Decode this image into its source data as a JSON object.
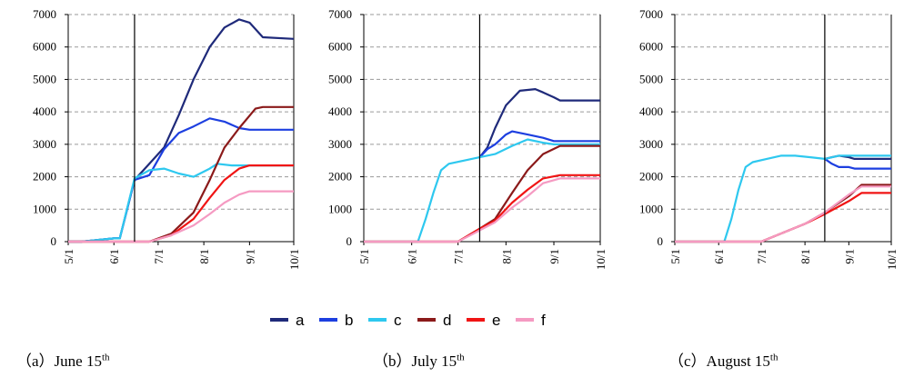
{
  "chart_data": [
    {
      "type": "line",
      "caption": {
        "prefix": "（a）June 15",
        "suffix": "th"
      },
      "cutoff_date": "6/15",
      "ylim": [
        0,
        7000
      ],
      "yticks": [
        "0",
        "1000",
        "2000",
        "3000",
        "4000",
        "5000",
        "6000",
        "7000"
      ],
      "xticks": [
        "5/1",
        "6/1",
        "7/1",
        "8/1",
        "9/1",
        "10/1"
      ],
      "grid": true,
      "series": [
        {
          "name": "a",
          "points": [
            [
              "5/1",
              0
            ],
            [
              "5/10",
              0
            ],
            [
              "6/1",
              100
            ],
            [
              "6/5",
              100
            ],
            [
              "6/15",
              1900
            ],
            [
              "6/25",
              2400
            ],
            [
              "7/5",
              2900
            ],
            [
              "7/15",
              3900
            ],
            [
              "7/25",
              5000
            ],
            [
              "8/5",
              6000
            ],
            [
              "8/15",
              6600
            ],
            [
              "8/25",
              6850
            ],
            [
              "9/1",
              6750
            ],
            [
              "9/10",
              6300
            ],
            [
              "10/1",
              6250
            ]
          ]
        },
        {
          "name": "b",
          "points": [
            [
              "5/1",
              0
            ],
            [
              "5/10",
              0
            ],
            [
              "6/1",
              100
            ],
            [
              "6/5",
              100
            ],
            [
              "6/15",
              1900
            ],
            [
              "6/25",
              2050
            ],
            [
              "7/5",
              2850
            ],
            [
              "7/15",
              3350
            ],
            [
              "7/25",
              3550
            ],
            [
              "8/5",
              3800
            ],
            [
              "8/15",
              3700
            ],
            [
              "8/25",
              3500
            ],
            [
              "9/1",
              3450
            ],
            [
              "10/1",
              3450
            ]
          ]
        },
        {
          "name": "c",
          "points": [
            [
              "5/1",
              0
            ],
            [
              "5/10",
              0
            ],
            [
              "6/1",
              100
            ],
            [
              "6/5",
              100
            ],
            [
              "6/15",
              1950
            ],
            [
              "6/25",
              2200
            ],
            [
              "7/5",
              2250
            ],
            [
              "7/15",
              2100
            ],
            [
              "7/25",
              2000
            ],
            [
              "8/5",
              2250
            ],
            [
              "8/10",
              2400
            ],
            [
              "8/20",
              2350
            ],
            [
              "10/1",
              2350
            ]
          ]
        },
        {
          "name": "d",
          "points": [
            [
              "5/1",
              0
            ],
            [
              "6/15",
              0
            ],
            [
              "6/25",
              0
            ],
            [
              "7/10",
              250
            ],
            [
              "7/25",
              900
            ],
            [
              "8/5",
              1900
            ],
            [
              "8/15",
              2900
            ],
            [
              "8/25",
              3500
            ],
            [
              "9/5",
              4100
            ],
            [
              "9/10",
              4150
            ],
            [
              "10/1",
              4150
            ]
          ]
        },
        {
          "name": "e",
          "points": [
            [
              "5/1",
              0
            ],
            [
              "6/15",
              0
            ],
            [
              "6/25",
              0
            ],
            [
              "7/10",
              200
            ],
            [
              "7/25",
              700
            ],
            [
              "8/5",
              1350
            ],
            [
              "8/15",
              1900
            ],
            [
              "8/25",
              2250
            ],
            [
              "9/1",
              2350
            ],
            [
              "10/1",
              2350
            ]
          ]
        },
        {
          "name": "f",
          "points": [
            [
              "5/1",
              0
            ],
            [
              "6/15",
              0
            ],
            [
              "6/25",
              0
            ],
            [
              "7/10",
              200
            ],
            [
              "7/25",
              500
            ],
            [
              "8/5",
              850
            ],
            [
              "8/15",
              1200
            ],
            [
              "8/25",
              1450
            ],
            [
              "9/1",
              1550
            ],
            [
              "10/1",
              1550
            ]
          ]
        }
      ]
    },
    {
      "type": "line",
      "caption": {
        "prefix": "（b）July 15",
        "suffix": "th"
      },
      "cutoff_date": "7/15",
      "ylim": [
        0,
        7000
      ],
      "yticks": [
        "0",
        "1000",
        "2000",
        "3000",
        "4000",
        "5000",
        "6000",
        "7000"
      ],
      "xticks": [
        "5/1",
        "6/1",
        "7/1",
        "8/1",
        "9/1",
        "10/1"
      ],
      "grid": true,
      "series": [
        {
          "name": "a",
          "points": [
            [
              "7/15",
              2600
            ],
            [
              "7/20",
              2900
            ],
            [
              "7/25",
              3500
            ],
            [
              "8/1",
              4200
            ],
            [
              "8/10",
              4650
            ],
            [
              "8/20",
              4700
            ],
            [
              "8/25",
              4600
            ],
            [
              "9/1",
              4450
            ],
            [
              "9/5",
              4350
            ],
            [
              "10/1",
              4350
            ]
          ]
        },
        {
          "name": "b",
          "points": [
            [
              "7/15",
              2600
            ],
            [
              "7/20",
              2850
            ],
            [
              "7/25",
              3000
            ],
            [
              "8/1",
              3300
            ],
            [
              "8/5",
              3400
            ],
            [
              "8/15",
              3300
            ],
            [
              "8/25",
              3200
            ],
            [
              "9/1",
              3100
            ],
            [
              "10/1",
              3100
            ]
          ]
        },
        {
          "name": "c",
          "points": [
            [
              "5/1",
              0
            ],
            [
              "5/20",
              0
            ],
            [
              "6/1",
              0
            ],
            [
              "6/5",
              0
            ],
            [
              "6/10",
              700
            ],
            [
              "6/15",
              1500
            ],
            [
              "6/20",
              2200
            ],
            [
              "6/25",
              2400
            ],
            [
              "7/5",
              2500
            ],
            [
              "7/15",
              2600
            ],
            [
              "7/25",
              2700
            ],
            [
              "8/5",
              2950
            ],
            [
              "8/15",
              3150
            ],
            [
              "8/25",
              3050
            ],
            [
              "9/1",
              3000
            ],
            [
              "10/1",
              3000
            ]
          ]
        },
        {
          "name": "d",
          "points": [
            [
              "5/1",
              0
            ],
            [
              "7/1",
              0
            ],
            [
              "7/15",
              400
            ],
            [
              "7/25",
              700
            ],
            [
              "8/5",
              1500
            ],
            [
              "8/15",
              2200
            ],
            [
              "8/25",
              2700
            ],
            [
              "9/5",
              2950
            ],
            [
              "10/1",
              2950
            ]
          ]
        },
        {
          "name": "e",
          "points": [
            [
              "5/1",
              0
            ],
            [
              "7/1",
              0
            ],
            [
              "7/15",
              400
            ],
            [
              "7/25",
              650
            ],
            [
              "8/5",
              1200
            ],
            [
              "8/15",
              1600
            ],
            [
              "8/25",
              1950
            ],
            [
              "9/5",
              2050
            ],
            [
              "10/1",
              2050
            ]
          ]
        },
        {
          "name": "f",
          "points": [
            [
              "5/1",
              0
            ],
            [
              "7/1",
              0
            ],
            [
              "7/15",
              350
            ],
            [
              "7/25",
              600
            ],
            [
              "8/5",
              1050
            ],
            [
              "8/15",
              1400
            ],
            [
              "8/25",
              1800
            ],
            [
              "9/5",
              1950
            ],
            [
              "10/1",
              1950
            ]
          ]
        }
      ]
    },
    {
      "type": "line",
      "caption": {
        "prefix": "（c）August 15",
        "suffix": "th"
      },
      "cutoff_date": "8/15",
      "ylim": [
        0,
        7000
      ],
      "yticks": [
        "0",
        "1000",
        "2000",
        "3000",
        "4000",
        "5000",
        "6000",
        "7000"
      ],
      "xticks": [
        "5/1",
        "6/1",
        "7/1",
        "8/1",
        "9/1",
        "10/1"
      ],
      "grid": true,
      "series": [
        {
          "name": "a",
          "points": [
            [
              "8/15",
              2550
            ],
            [
              "8/20",
              2600
            ],
            [
              "8/25",
              2650
            ],
            [
              "9/1",
              2600
            ],
            [
              "9/5",
              2550
            ],
            [
              "10/1",
              2550
            ]
          ]
        },
        {
          "name": "b",
          "points": [
            [
              "8/15",
              2550
            ],
            [
              "8/20",
              2400
            ],
            [
              "8/25",
              2300
            ],
            [
              "9/1",
              2300
            ],
            [
              "9/5",
              2250
            ],
            [
              "10/1",
              2250
            ]
          ]
        },
        {
          "name": "c",
          "points": [
            [
              "5/1",
              0
            ],
            [
              "5/15",
              0
            ],
            [
              "6/1",
              0
            ],
            [
              "6/5",
              0
            ],
            [
              "6/10",
              700
            ],
            [
              "6/15",
              1600
            ],
            [
              "6/20",
              2300
            ],
            [
              "6/25",
              2450
            ],
            [
              "7/5",
              2550
            ],
            [
              "7/15",
              2650
            ],
            [
              "7/25",
              2650
            ],
            [
              "8/5",
              2600
            ],
            [
              "8/15",
              2550
            ],
            [
              "8/25",
              2650
            ],
            [
              "9/5",
              2650
            ],
            [
              "10/1",
              2650
            ]
          ]
        },
        {
          "name": "d",
          "points": [
            [
              "5/1",
              0
            ],
            [
              "6/20",
              0
            ],
            [
              "7/1",
              0
            ],
            [
              "7/15",
              250
            ],
            [
              "8/1",
              550
            ],
            [
              "8/15",
              900
            ],
            [
              "9/1",
              1400
            ],
            [
              "9/10",
              1750
            ],
            [
              "10/1",
              1750
            ]
          ]
        },
        {
          "name": "e",
          "points": [
            [
              "5/1",
              0
            ],
            [
              "6/20",
              0
            ],
            [
              "7/1",
              0
            ],
            [
              "7/15",
              250
            ],
            [
              "8/1",
              550
            ],
            [
              "8/15",
              850
            ],
            [
              "9/1",
              1250
            ],
            [
              "9/10",
              1500
            ],
            [
              "10/1",
              1500
            ]
          ]
        },
        {
          "name": "f",
          "points": [
            [
              "5/1",
              0
            ],
            [
              "6/20",
              0
            ],
            [
              "7/1",
              0
            ],
            [
              "7/15",
              250
            ],
            [
              "8/1",
              550
            ],
            [
              "8/15",
              900
            ],
            [
              "9/1",
              1450
            ],
            [
              "9/10",
              1700
            ],
            [
              "10/1",
              1700
            ]
          ]
        }
      ]
    }
  ],
  "legend": [
    {
      "label": "a",
      "color": "#1f2a7a"
    },
    {
      "label": "b",
      "color": "#1d3fe0"
    },
    {
      "label": "c",
      "color": "#2ec8ef"
    },
    {
      "label": "d",
      "color": "#8b1a1a"
    },
    {
      "label": "e",
      "color": "#f01414"
    },
    {
      "label": "f",
      "color": "#f59ac2"
    }
  ]
}
